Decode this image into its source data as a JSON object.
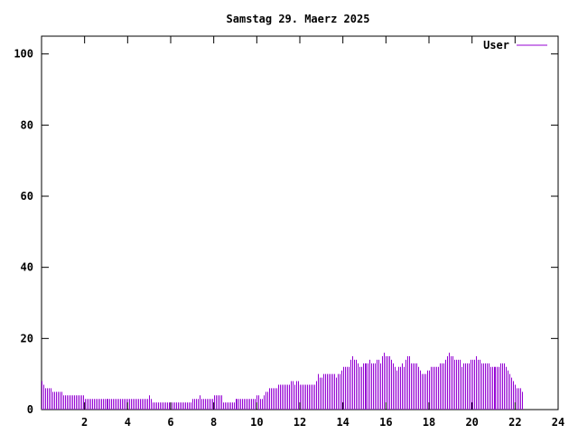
{
  "chart_data": {
    "type": "bar",
    "title": "Samstag 29. Maerz 2025",
    "xlabel": "",
    "ylabel": "",
    "xlim": [
      0,
      24
    ],
    "ylim": [
      0,
      105
    ],
    "x_ticks": [
      2,
      4,
      6,
      8,
      10,
      12,
      14,
      16,
      18,
      20,
      22,
      24
    ],
    "y_ticks": [
      0,
      20,
      40,
      60,
      80,
      100
    ],
    "grid": false,
    "legend_position": "top-right",
    "series": [
      {
        "name": "User",
        "color": "#9400d3",
        "x_step_minutes": 5,
        "values": [
          8,
          7,
          6,
          6,
          6,
          6,
          5,
          5,
          5,
          5,
          5,
          5,
          4,
          4,
          4,
          4,
          4,
          4,
          4,
          4,
          4,
          4,
          4,
          4,
          3,
          3,
          3,
          3,
          3,
          3,
          3,
          3,
          3,
          3,
          3,
          3,
          3,
          3,
          3,
          3,
          3,
          3,
          3,
          3,
          3,
          3,
          3,
          3,
          3,
          3,
          3,
          3,
          3,
          3,
          3,
          3,
          3,
          3,
          3,
          3,
          4,
          3,
          2,
          2,
          2,
          2,
          2,
          2,
          2,
          2,
          2,
          2,
          2,
          2,
          2,
          2,
          2,
          2,
          2,
          2,
          2,
          2,
          2,
          2,
          3,
          3,
          3,
          3,
          4,
          3,
          3,
          3,
          3,
          3,
          3,
          3,
          4,
          4,
          4,
          4,
          4,
          2,
          2,
          2,
          2,
          2,
          2,
          2,
          3,
          3,
          3,
          3,
          3,
          3,
          3,
          3,
          3,
          3,
          3,
          3,
          4,
          4,
          3,
          3,
          4,
          5,
          5,
          6,
          6,
          6,
          6,
          6,
          7,
          7,
          7,
          7,
          7,
          7,
          7,
          8,
          8,
          7,
          8,
          8,
          7,
          7,
          7,
          7,
          7,
          7,
          7,
          7,
          7,
          8,
          10,
          9,
          9,
          10,
          10,
          10,
          10,
          10,
          10,
          10,
          9,
          10,
          10,
          11,
          12,
          12,
          12,
          12,
          14,
          15,
          14,
          14,
          13,
          12,
          12,
          13,
          13,
          13,
          13,
          14,
          13,
          13,
          13,
          14,
          14,
          13,
          15,
          16,
          15,
          15,
          15,
          14,
          13,
          12,
          11,
          12,
          12,
          13,
          12,
          14,
          15,
          15,
          13,
          13,
          13,
          13,
          12,
          11,
          10,
          10,
          10,
          11,
          11,
          12,
          12,
          12,
          12,
          12,
          13,
          13,
          13,
          14,
          15,
          16,
          15,
          15,
          14,
          14,
          14,
          14,
          12,
          13,
          13,
          13,
          13,
          14,
          14,
          14,
          15,
          14,
          14,
          13,
          13,
          13,
          13,
          13,
          12,
          12,
          12,
          12,
          12,
          12,
          13,
          13,
          13,
          12,
          11,
          10,
          9,
          8,
          7,
          6,
          6,
          6,
          5
        ]
      }
    ]
  }
}
